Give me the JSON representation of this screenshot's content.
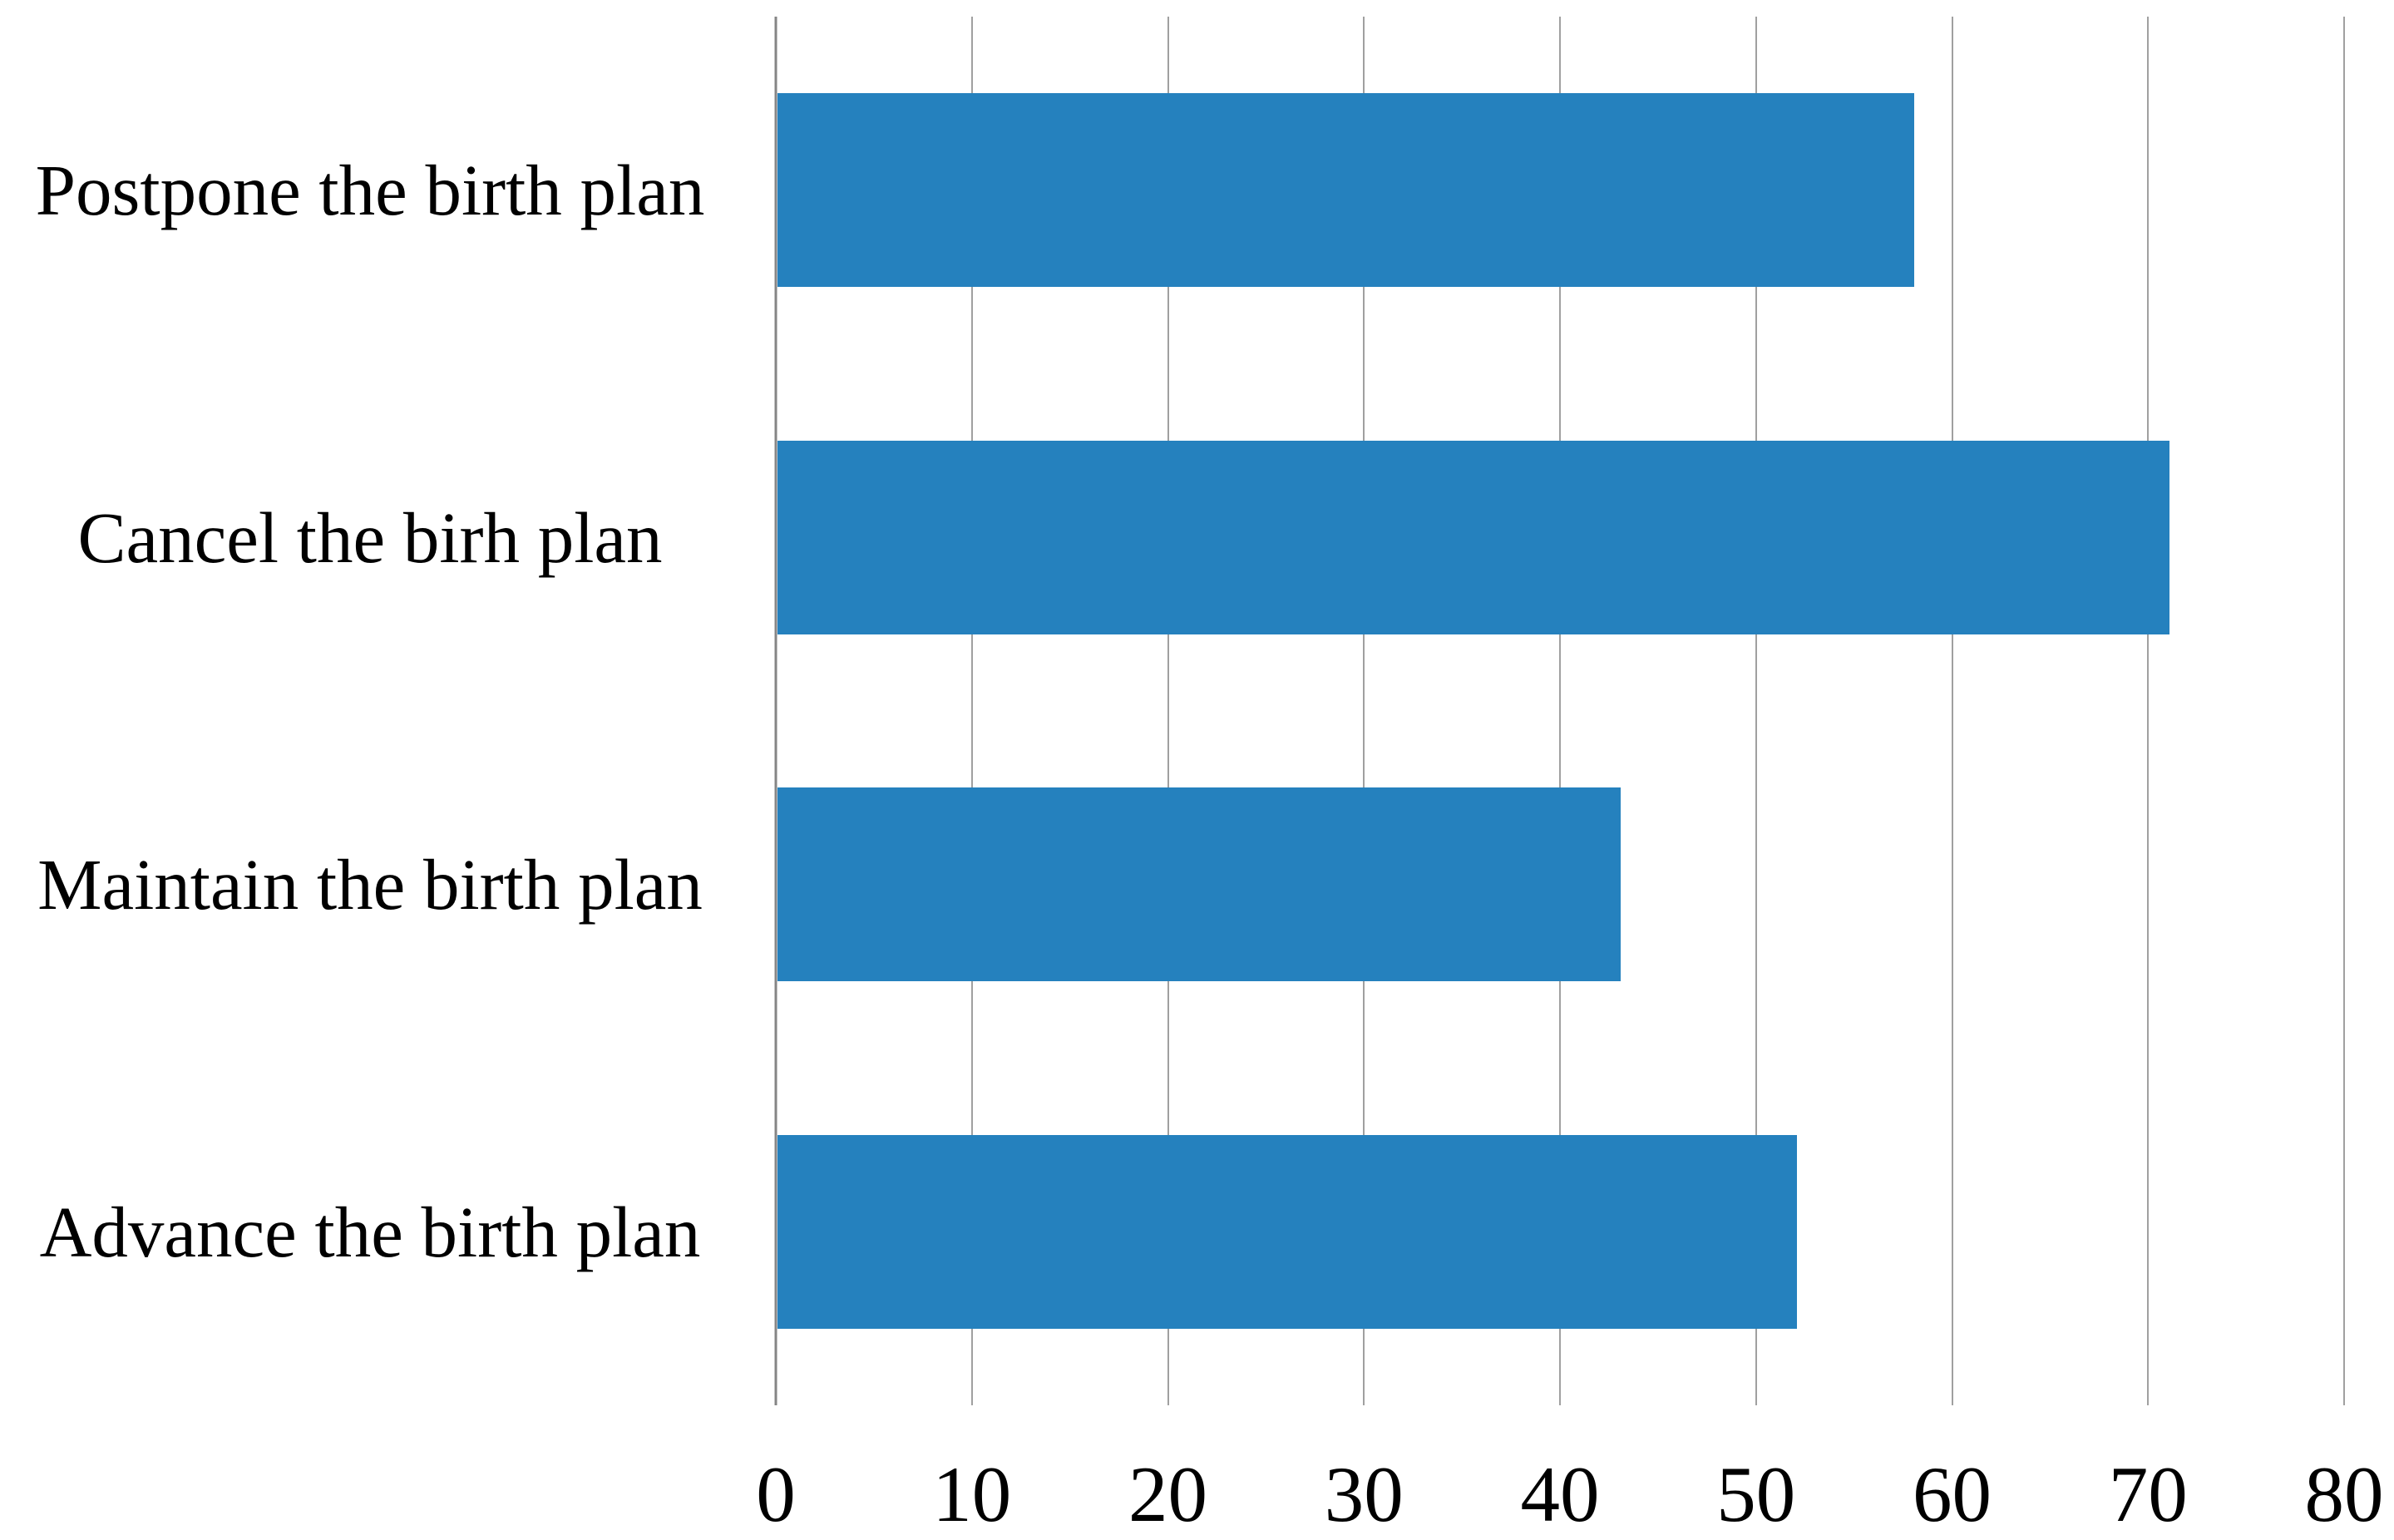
{
  "chart_data": {
    "type": "bar",
    "orientation": "horizontal",
    "title": "",
    "xlabel": "",
    "ylabel": "",
    "categories": [
      "Postpone the birth plan",
      "Cancel the birh plan",
      "Maintain the birth plan",
      "Advance the birth plan"
    ],
    "values": [
      58,
      71,
      43,
      52
    ],
    "xlim": [
      0,
      80
    ],
    "xticks": [
      0,
      10,
      20,
      30,
      40,
      50,
      60,
      70,
      80
    ],
    "grid": "vertical-gridlines-on",
    "legend": "none"
  },
  "colors": {
    "bar": "#2581BE",
    "gridline": "#A0A0A0",
    "axis_line": "#858585",
    "text": "#000000",
    "background": "#FFFFFF"
  }
}
